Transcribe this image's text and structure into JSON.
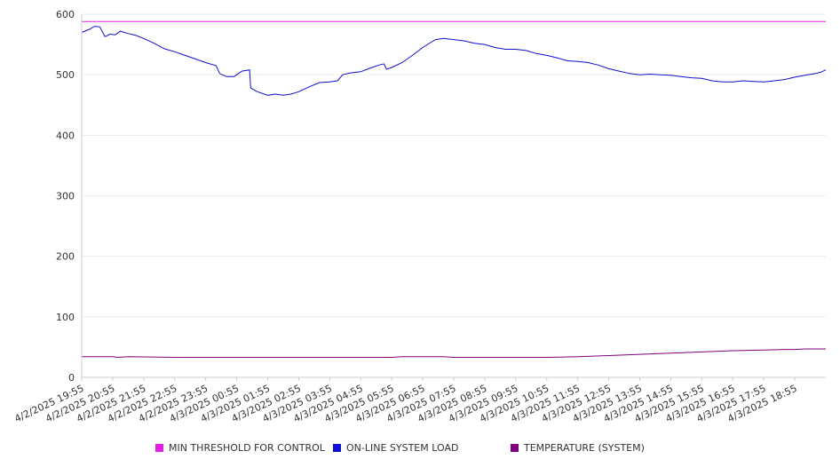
{
  "chart_data": {
    "type": "line",
    "title": "",
    "xlabel": "",
    "ylabel": "",
    "ylim": [
      0,
      600
    ],
    "y_ticks": [
      0,
      100,
      200,
      300,
      400,
      500,
      600
    ],
    "x_tick_labels": [
      "4/2/2025 19:55",
      "4/2/2025 20:55",
      "4/2/2025 21:55",
      "4/2/2025 22:55",
      "4/2/2025 23:55",
      "4/3/2025 00:55",
      "4/3/2025 01:55",
      "4/3/2025 02:55",
      "4/3/2025 03:55",
      "4/3/2025 04:55",
      "4/3/2025 05:55",
      "4/3/2025 06:55",
      "4/3/2025 07:55",
      "4/3/2025 08:55",
      "4/3/2025 09:55",
      "4/3/2025 10:55",
      "4/3/2025 11:55",
      "4/3/2025 12:55",
      "4/3/2025 13:55",
      "4/3/2025 14:55",
      "4/3/2025 15:55",
      "4/3/2025 16:55",
      "4/3/2025 17:55",
      "4/3/2025 18:55"
    ],
    "x_range": [
      "4/2/2025 19:55",
      "4/3/2025 19:55"
    ],
    "grid": true,
    "legend_position": "bottom",
    "series": [
      {
        "name": "MIN THRESHOLD FOR CONTROL",
        "color": "#e020e0",
        "points": [
          [
            "4/2/2025 19:55",
            588
          ],
          [
            "4/3/2025 19:55",
            588
          ]
        ]
      },
      {
        "name": "ON-LINE SYSTEM LOAD",
        "color": "#1010d0",
        "points": [
          [
            "4/2/2025 19:55",
            570
          ],
          [
            "4/2/2025 20:10",
            575
          ],
          [
            "4/2/2025 20:20",
            580
          ],
          [
            "4/2/2025 20:30",
            579
          ],
          [
            "4/2/2025 20:40",
            563
          ],
          [
            "4/2/2025 20:50",
            567
          ],
          [
            "4/2/2025 21:00",
            566
          ],
          [
            "4/2/2025 21:10",
            572
          ],
          [
            "4/2/2025 21:25",
            568
          ],
          [
            "4/2/2025 21:40",
            565
          ],
          [
            "4/2/2025 21:55",
            560
          ],
          [
            "4/2/2025 22:15",
            552
          ],
          [
            "4/2/2025 22:35",
            543
          ],
          [
            "4/2/2025 22:55",
            538
          ],
          [
            "4/2/2025 23:15",
            532
          ],
          [
            "4/2/2025 23:35",
            526
          ],
          [
            "4/2/2025 23:55",
            520
          ],
          [
            "4/3/2025 00:15",
            515
          ],
          [
            "4/3/2025 00:22",
            502
          ],
          [
            "4/3/2025 00:35",
            497
          ],
          [
            "4/3/2025 00:50",
            497
          ],
          [
            "4/3/2025 01:05",
            506
          ],
          [
            "4/3/2025 01:20",
            508
          ],
          [
            "4/3/2025 01:22",
            478
          ],
          [
            "4/3/2025 01:35",
            472
          ],
          [
            "4/3/2025 01:55",
            466
          ],
          [
            "4/3/2025 02:10",
            468
          ],
          [
            "4/3/2025 02:25",
            466
          ],
          [
            "4/3/2025 02:40",
            468
          ],
          [
            "4/3/2025 02:55",
            472
          ],
          [
            "4/3/2025 03:15",
            480
          ],
          [
            "4/3/2025 03:35",
            487
          ],
          [
            "4/3/2025 03:55",
            488
          ],
          [
            "4/3/2025 04:10",
            490
          ],
          [
            "4/3/2025 04:20",
            500
          ],
          [
            "4/3/2025 04:35",
            503
          ],
          [
            "4/3/2025 04:55",
            505
          ],
          [
            "4/3/2025 05:10",
            510
          ],
          [
            "4/3/2025 05:30",
            516
          ],
          [
            "4/3/2025 05:40",
            518
          ],
          [
            "4/3/2025 05:45",
            509
          ],
          [
            "4/3/2025 05:55",
            512
          ],
          [
            "4/3/2025 06:15",
            520
          ],
          [
            "4/3/2025 06:35",
            532
          ],
          [
            "4/3/2025 06:55",
            545
          ],
          [
            "4/3/2025 07:10",
            553
          ],
          [
            "4/3/2025 07:20",
            558
          ],
          [
            "4/3/2025 07:35",
            560
          ],
          [
            "4/3/2025 07:55",
            558
          ],
          [
            "4/3/2025 08:15",
            556
          ],
          [
            "4/3/2025 08:35",
            552
          ],
          [
            "4/3/2025 08:55",
            550
          ],
          [
            "4/3/2025 09:15",
            545
          ],
          [
            "4/3/2025 09:35",
            542
          ],
          [
            "4/3/2025 09:55",
            542
          ],
          [
            "4/3/2025 10:15",
            540
          ],
          [
            "4/3/2025 10:35",
            535
          ],
          [
            "4/3/2025 10:55",
            532
          ],
          [
            "4/3/2025 11:15",
            528
          ],
          [
            "4/3/2025 11:35",
            523
          ],
          [
            "4/3/2025 11:55",
            522
          ],
          [
            "4/3/2025 12:15",
            520
          ],
          [
            "4/3/2025 12:35",
            516
          ],
          [
            "4/3/2025 12:55",
            510
          ],
          [
            "4/3/2025 13:15",
            506
          ],
          [
            "4/3/2025 13:35",
            502
          ],
          [
            "4/3/2025 13:55",
            500
          ],
          [
            "4/3/2025 14:15",
            501
          ],
          [
            "4/3/2025 14:35",
            500
          ],
          [
            "4/3/2025 14:55",
            499
          ],
          [
            "4/3/2025 15:15",
            497
          ],
          [
            "4/3/2025 15:35",
            495
          ],
          [
            "4/3/2025 15:55",
            494
          ],
          [
            "4/3/2025 16:15",
            490
          ],
          [
            "4/3/2025 16:35",
            488
          ],
          [
            "4/3/2025 16:55",
            488
          ],
          [
            "4/3/2025 17:15",
            490
          ],
          [
            "4/3/2025 17:35",
            489
          ],
          [
            "4/3/2025 17:55",
            488
          ],
          [
            "4/3/2025 18:15",
            490
          ],
          [
            "4/3/2025 18:35",
            492
          ],
          [
            "4/3/2025 18:55",
            496
          ],
          [
            "4/3/2025 19:15",
            499
          ],
          [
            "4/3/2025 19:35",
            502
          ],
          [
            "4/3/2025 19:45",
            504
          ],
          [
            "4/3/2025 19:55",
            508
          ]
        ]
      },
      {
        "name": "TEMPERATURE (SYSTEM)",
        "color": "#800080",
        "points": [
          [
            "4/2/2025 19:55",
            34
          ],
          [
            "4/2/2025 20:55",
            34
          ],
          [
            "4/2/2025 21:05",
            33
          ],
          [
            "4/2/2025 21:25",
            34
          ],
          [
            "4/2/2025 22:55",
            33
          ],
          [
            "4/3/2025 05:55",
            33
          ],
          [
            "4/3/2025 06:15",
            34
          ],
          [
            "4/3/2025 07:35",
            34
          ],
          [
            "4/3/2025 07:55",
            33
          ],
          [
            "4/3/2025 10:55",
            33
          ],
          [
            "4/3/2025 11:55",
            34
          ],
          [
            "4/3/2025 12:55",
            36
          ],
          [
            "4/3/2025 13:55",
            38
          ],
          [
            "4/3/2025 14:55",
            40
          ],
          [
            "4/3/2025 15:55",
            42
          ],
          [
            "4/3/2025 16:55",
            44
          ],
          [
            "4/3/2025 17:55",
            45
          ],
          [
            "4/3/2025 18:35",
            46
          ],
          [
            "4/3/2025 18:55",
            46
          ],
          [
            "4/3/2025 19:15",
            47
          ],
          [
            "4/3/2025 19:55",
            47
          ]
        ]
      }
    ]
  }
}
